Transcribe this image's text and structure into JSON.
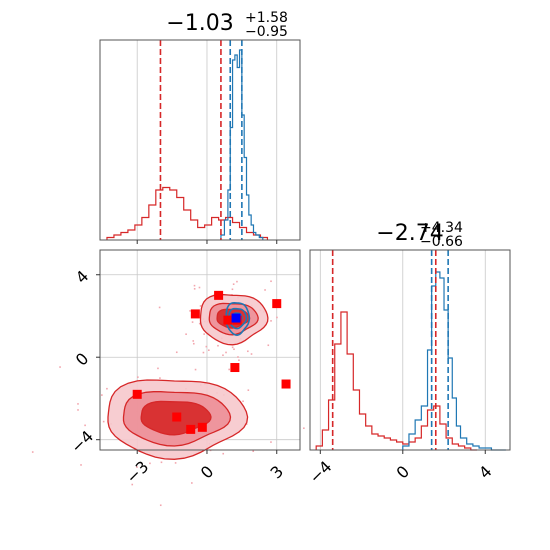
{
  "chart_data": [
    {
      "type": "histogram",
      "panel": "top-left marginal (parameter 1)",
      "title": {
        "median": "−1.03",
        "upper": "+1.58",
        "lower": "−0.95"
      },
      "xlim": [
        -4.6,
        4.0
      ],
      "xticks": [
        -3,
        0,
        3
      ],
      "grid": true,
      "series": [
        {
          "color": "#d62728",
          "bin_edges": [
            -4.3,
            -4.0,
            -3.7,
            -3.4,
            -3.1,
            -2.8,
            -2.5,
            -2.2,
            -1.9,
            -1.6,
            -1.3,
            -1.0,
            -0.7,
            -0.4,
            -0.1,
            0.2,
            0.5,
            0.8,
            1.1,
            1.4,
            1.7,
            2.0,
            2.3,
            2.6
          ],
          "counts": [
            0.01,
            0.02,
            0.03,
            0.04,
            0.06,
            0.09,
            0.14,
            0.2,
            0.21,
            0.2,
            0.17,
            0.12,
            0.08,
            0.05,
            0.06,
            0.09,
            0.08,
            0.09,
            0.07,
            0.05,
            0.03,
            0.02,
            0.01
          ]
        },
        {
          "color": "#1f77b4",
          "bin_edges": [
            0.6,
            0.75,
            0.9,
            1.0,
            1.1,
            1.2,
            1.3,
            1.4,
            1.5,
            1.6,
            1.7,
            1.8,
            1.9,
            2.0,
            2.1,
            2.25,
            2.4
          ],
          "counts": [
            0.02,
            0.08,
            0.2,
            0.45,
            0.72,
            0.74,
            0.69,
            0.76,
            0.5,
            0.33,
            0.18,
            0.1,
            0.06,
            0.03,
            0.02,
            0.01
          ]
        }
      ],
      "quantile_lines": [
        {
          "color": "#d62728",
          "values": [
            -2.0,
            0.6
          ]
        },
        {
          "color": "#1f77b4",
          "values": [
            1.0,
            1.5
          ]
        }
      ]
    },
    {
      "type": "contour",
      "panel": "bottom-left joint (parameter 1 vs parameter 2)",
      "xlim": [
        -4.6,
        4.0
      ],
      "ylim": [
        -4.5,
        5.2
      ],
      "xticks": [
        -3,
        0,
        3
      ],
      "yticks": [
        -4,
        0,
        4
      ],
      "grid": true,
      "red_modes": [
        {
          "center": [
            1.1,
            1.9
          ],
          "levels": [
            [
              0.7,
              0.45
            ],
            [
              1.05,
              0.75
            ],
            [
              1.45,
              1.2
            ]
          ]
        },
        {
          "center": [
            -1.4,
            -2.9
          ],
          "levels": [
            [
              1.5,
              0.8
            ],
            [
              2.3,
              1.3
            ],
            [
              3.0,
              1.9
            ]
          ]
        }
      ],
      "blue_mode": {
        "center": [
          1.3,
          1.9
        ],
        "levels": [
          [
            0.2,
            0.25
          ],
          [
            0.38,
            0.48
          ],
          [
            0.5,
            0.78
          ]
        ]
      },
      "markers": [
        {
          "color": "#ff0000",
          "points": [
            [
              0.5,
              3.0
            ],
            [
              -0.5,
              2.1
            ],
            [
              0.9,
              1.8
            ],
            [
              1.3,
              1.8
            ],
            [
              3.0,
              2.6
            ],
            [
              1.2,
              -0.5
            ],
            [
              3.4,
              -1.3
            ],
            [
              -3.0,
              -1.8
            ],
            [
              -1.3,
              -2.9
            ],
            [
              -0.7,
              -3.5
            ],
            [
              -0.2,
              -3.4
            ]
          ]
        },
        {
          "color": "#0000ff",
          "points": [
            [
              1.25,
              1.9
            ]
          ]
        }
      ]
    },
    {
      "type": "histogram",
      "panel": "bottom-right marginal (parameter 2)",
      "title": {
        "median": "−2.74",
        "upper": "+4.34",
        "lower": "−0.66"
      },
      "xlim": [
        -4.5,
        5.2
      ],
      "xticks": [
        -4,
        0,
        4
      ],
      "grid": true,
      "series": [
        {
          "color": "#d62728",
          "bin_edges": [
            -4.2,
            -3.9,
            -3.6,
            -3.3,
            -3.0,
            -2.7,
            -2.4,
            -2.1,
            -1.8,
            -1.5,
            -1.2,
            -0.9,
            -0.6,
            -0.3,
            0.0,
            0.3,
            0.6,
            0.9,
            1.2,
            1.5,
            1.8,
            2.1,
            2.4,
            2.7,
            3.0,
            3.3,
            3.6
          ],
          "counts": [
            0.02,
            0.1,
            0.25,
            0.53,
            0.69,
            0.48,
            0.3,
            0.18,
            0.12,
            0.08,
            0.07,
            0.06,
            0.05,
            0.04,
            0.03,
            0.04,
            0.06,
            0.12,
            0.2,
            0.22,
            0.13,
            0.06,
            0.03,
            0.02,
            0.01,
            0.0
          ]
        },
        {
          "color": "#1f77b4",
          "bin_edges": [
            0.0,
            0.3,
            0.6,
            0.9,
            1.2,
            1.4,
            1.6,
            1.8,
            2.0,
            2.2,
            2.4,
            2.6,
            2.8,
            3.1,
            3.4,
            3.7,
            4.0,
            4.3,
            4.6,
            5.0
          ],
          "counts": [
            0.02,
            0.08,
            0.15,
            0.22,
            0.5,
            0.82,
            0.89,
            0.86,
            0.7,
            0.46,
            0.26,
            0.12,
            0.06,
            0.03,
            0.02,
            0.01,
            0.01,
            0.0,
            0.0
          ]
        }
      ],
      "quantile_lines": [
        {
          "color": "#d62728",
          "values": [
            -3.4,
            1.6
          ]
        },
        {
          "color": "#1f77b4",
          "values": [
            1.4,
            2.2
          ]
        }
      ]
    }
  ]
}
